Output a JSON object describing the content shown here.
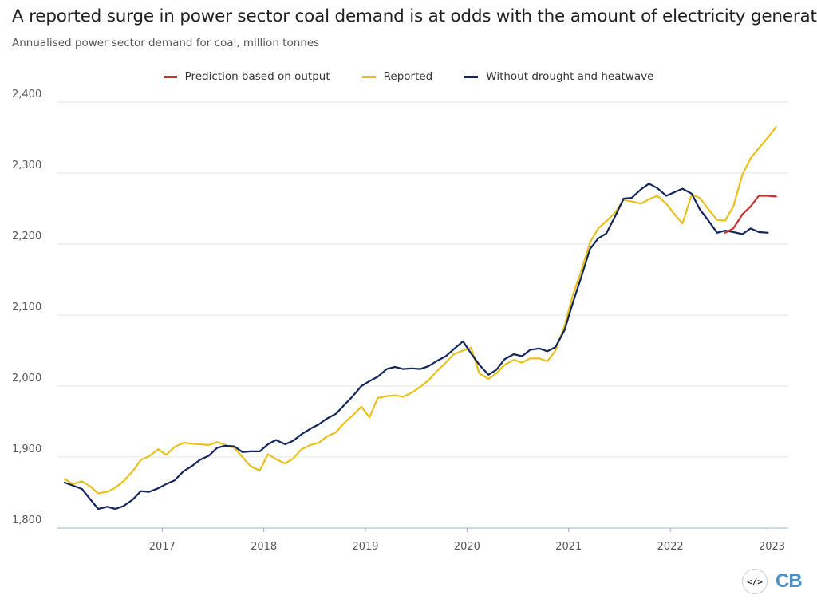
{
  "chart_data": {
    "type": "line",
    "title": "A reported surge in power sector coal demand is at odds with the amount of electricity generated",
    "subtitle": "Annualised power sector demand for coal, million tonnes",
    "xlabel": "",
    "ylabel": "",
    "ylim": [
      1800,
      2400
    ],
    "yticks": [
      1800,
      1900,
      2000,
      2100,
      2200,
      2300,
      2400
    ],
    "ytick_labels": [
      "1,800",
      "1,900",
      "2,000",
      "2,100",
      "2,200",
      "2,300",
      "2,400"
    ],
    "x_range": [
      2016.04,
      2023.09
    ],
    "xticks": [
      2017,
      2018,
      2019,
      2020,
      2021,
      2022,
      2023
    ],
    "xtick_labels": [
      "2017",
      "2018",
      "2019",
      "2020",
      "2021",
      "2022",
      "2023"
    ],
    "grid": true,
    "legend_position": "top-center",
    "series": [
      {
        "name": "Prediction based on output",
        "color": "#c9302c",
        "points": [
          [
            2022.54,
            2216
          ],
          [
            2022.62,
            2222
          ],
          [
            2022.71,
            2242
          ],
          [
            2022.79,
            2253
          ],
          [
            2022.87,
            2268
          ],
          [
            2022.96,
            2268
          ],
          [
            2023.04,
            2267
          ]
        ]
      },
      {
        "name": "Reported",
        "color": "#e8c01b",
        "points": [
          [
            2016.04,
            1869
          ],
          [
            2016.12,
            1862
          ],
          [
            2016.21,
            1866
          ],
          [
            2016.29,
            1859
          ],
          [
            2016.37,
            1849
          ],
          [
            2016.46,
            1851
          ],
          [
            2016.54,
            1857
          ],
          [
            2016.62,
            1866
          ],
          [
            2016.71,
            1880
          ],
          [
            2016.79,
            1896
          ],
          [
            2016.87,
            1901
          ],
          [
            2016.96,
            1911
          ],
          [
            2017.04,
            1903
          ],
          [
            2017.12,
            1914
          ],
          [
            2017.21,
            1920
          ],
          [
            2017.29,
            1919
          ],
          [
            2017.37,
            1918
          ],
          [
            2017.46,
            1917
          ],
          [
            2017.54,
            1921
          ],
          [
            2017.62,
            1917
          ],
          [
            2017.71,
            1913
          ],
          [
            2017.79,
            1900
          ],
          [
            2017.87,
            1887
          ],
          [
            2017.96,
            1881
          ],
          [
            2018.04,
            1904
          ],
          [
            2018.12,
            1897
          ],
          [
            2018.21,
            1891
          ],
          [
            2018.29,
            1898
          ],
          [
            2018.37,
            1911
          ],
          [
            2018.46,
            1917
          ],
          [
            2018.54,
            1920
          ],
          [
            2018.62,
            1929
          ],
          [
            2018.71,
            1935
          ],
          [
            2018.79,
            1948
          ],
          [
            2018.87,
            1958
          ],
          [
            2018.96,
            1971
          ],
          [
            2019.04,
            1956
          ],
          [
            2019.12,
            1983
          ],
          [
            2019.21,
            1986
          ],
          [
            2019.29,
            1987
          ],
          [
            2019.37,
            1985
          ],
          [
            2019.46,
            1991
          ],
          [
            2019.54,
            1999
          ],
          [
            2019.62,
            2008
          ],
          [
            2019.71,
            2022
          ],
          [
            2019.79,
            2033
          ],
          [
            2019.87,
            2045
          ],
          [
            2019.96,
            2050
          ],
          [
            2020.04,
            2054
          ],
          [
            2020.12,
            2018
          ],
          [
            2020.21,
            2010
          ],
          [
            2020.29,
            2018
          ],
          [
            2020.37,
            2030
          ],
          [
            2020.46,
            2037
          ],
          [
            2020.54,
            2033
          ],
          [
            2020.62,
            2039
          ],
          [
            2020.71,
            2039
          ],
          [
            2020.79,
            2035
          ],
          [
            2020.87,
            2050
          ],
          [
            2020.96,
            2085
          ],
          [
            2021.04,
            2128
          ],
          [
            2021.12,
            2161
          ],
          [
            2021.21,
            2202
          ],
          [
            2021.29,
            2222
          ],
          [
            2021.37,
            2232
          ],
          [
            2021.46,
            2245
          ],
          [
            2021.54,
            2262
          ],
          [
            2021.62,
            2260
          ],
          [
            2021.71,
            2257
          ],
          [
            2021.79,
            2263
          ],
          [
            2021.87,
            2268
          ],
          [
            2021.96,
            2257
          ],
          [
            2022.04,
            2242
          ],
          [
            2022.12,
            2229
          ],
          [
            2022.21,
            2270
          ],
          [
            2022.29,
            2265
          ],
          [
            2022.37,
            2250
          ],
          [
            2022.46,
            2234
          ],
          [
            2022.54,
            2233
          ],
          [
            2022.62,
            2253
          ],
          [
            2022.71,
            2298
          ],
          [
            2022.79,
            2321
          ],
          [
            2022.87,
            2335
          ],
          [
            2022.96,
            2350
          ],
          [
            2023.04,
            2365
          ]
        ]
      },
      {
        "name": "Without drought and heatwave",
        "color": "#13265c",
        "points": [
          [
            2016.04,
            1864
          ],
          [
            2016.12,
            1860
          ],
          [
            2016.21,
            1855
          ],
          [
            2016.29,
            1841
          ],
          [
            2016.37,
            1827
          ],
          [
            2016.46,
            1830
          ],
          [
            2016.54,
            1827
          ],
          [
            2016.62,
            1831
          ],
          [
            2016.71,
            1840
          ],
          [
            2016.79,
            1852
          ],
          [
            2016.87,
            1851
          ],
          [
            2016.96,
            1856
          ],
          [
            2017.04,
            1862
          ],
          [
            2017.12,
            1867
          ],
          [
            2017.21,
            1880
          ],
          [
            2017.29,
            1887
          ],
          [
            2017.37,
            1896
          ],
          [
            2017.46,
            1902
          ],
          [
            2017.54,
            1913
          ],
          [
            2017.62,
            1916
          ],
          [
            2017.71,
            1915
          ],
          [
            2017.79,
            1907
          ],
          [
            2017.87,
            1908
          ],
          [
            2017.96,
            1908
          ],
          [
            2018.04,
            1918
          ],
          [
            2018.12,
            1924
          ],
          [
            2018.21,
            1918
          ],
          [
            2018.29,
            1923
          ],
          [
            2018.37,
            1932
          ],
          [
            2018.46,
            1940
          ],
          [
            2018.54,
            1946
          ],
          [
            2018.62,
            1954
          ],
          [
            2018.71,
            1961
          ],
          [
            2018.79,
            1973
          ],
          [
            2018.87,
            1985
          ],
          [
            2018.96,
            2000
          ],
          [
            2019.04,
            2007
          ],
          [
            2019.12,
            2013
          ],
          [
            2019.21,
            2024
          ],
          [
            2019.29,
            2027
          ],
          [
            2019.37,
            2024
          ],
          [
            2019.46,
            2025
          ],
          [
            2019.54,
            2024
          ],
          [
            2019.62,
            2028
          ],
          [
            2019.71,
            2036
          ],
          [
            2019.79,
            2042
          ],
          [
            2019.87,
            2052
          ],
          [
            2019.96,
            2063
          ],
          [
            2020.04,
            2046
          ],
          [
            2020.12,
            2030
          ],
          [
            2020.21,
            2016
          ],
          [
            2020.29,
            2023
          ],
          [
            2020.37,
            2038
          ],
          [
            2020.46,
            2045
          ],
          [
            2020.54,
            2042
          ],
          [
            2020.62,
            2051
          ],
          [
            2020.71,
            2053
          ],
          [
            2020.79,
            2049
          ],
          [
            2020.87,
            2055
          ],
          [
            2020.96,
            2079
          ],
          [
            2021.04,
            2117
          ],
          [
            2021.12,
            2152
          ],
          [
            2021.21,
            2193
          ],
          [
            2021.29,
            2208
          ],
          [
            2021.37,
            2215
          ],
          [
            2021.46,
            2240
          ],
          [
            2021.54,
            2264
          ],
          [
            2021.62,
            2265
          ],
          [
            2021.71,
            2277
          ],
          [
            2021.79,
            2285
          ],
          [
            2021.87,
            2279
          ],
          [
            2021.96,
            2268
          ],
          [
            2022.04,
            2273
          ],
          [
            2022.12,
            2278
          ],
          [
            2022.21,
            2271
          ],
          [
            2022.29,
            2249
          ],
          [
            2022.37,
            2234
          ],
          [
            2022.46,
            2216
          ],
          [
            2022.54,
            2219
          ],
          [
            2022.62,
            2217
          ],
          [
            2022.71,
            2214
          ],
          [
            2022.79,
            2222
          ],
          [
            2022.87,
            2217
          ],
          [
            2022.96,
            2216
          ]
        ]
      }
    ]
  },
  "logo": {
    "embed_icon": "embed-code-icon",
    "embed_glyph": "</>",
    "brand": "CB"
  }
}
